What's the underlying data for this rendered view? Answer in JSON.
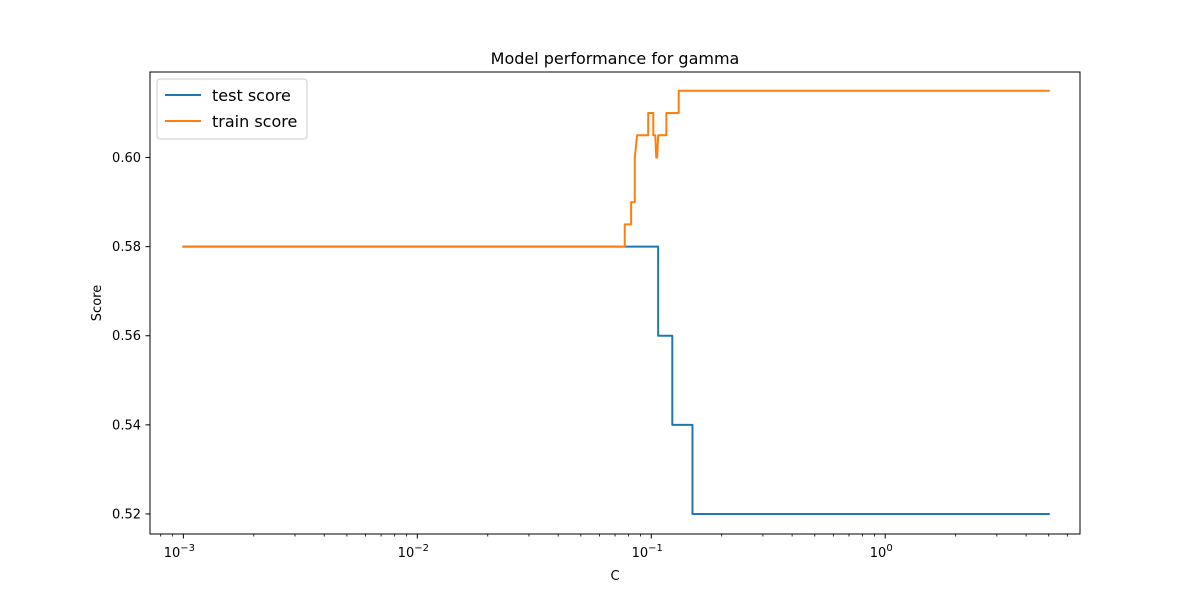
{
  "chart_data": {
    "type": "line",
    "title": "Model performance for gamma",
    "xlabel": "C",
    "ylabel": "Score",
    "xscale": "log",
    "xlim": [
      0.00072,
      6.8
    ],
    "ylim": [
      0.5155,
      0.6192
    ],
    "x_ticks": [
      {
        "value": 0.001,
        "base": "10",
        "exp": "−3"
      },
      {
        "value": 0.01,
        "base": "10",
        "exp": "−2"
      },
      {
        "value": 0.1,
        "base": "10",
        "exp": "−1"
      },
      {
        "value": 1,
        "base": "10",
        "exp": "0"
      }
    ],
    "y_ticks": [
      {
        "value": 0.52,
        "label": "0.52"
      },
      {
        "value": 0.54,
        "label": "0.54"
      },
      {
        "value": 0.56,
        "label": "0.56"
      },
      {
        "value": 0.58,
        "label": "0.58"
      },
      {
        "value": 0.6,
        "label": "0.60"
      }
    ],
    "grid": false,
    "legend_position": "top-left",
    "series": [
      {
        "name": "test score",
        "color": "#1f77b4",
        "points": [
          [
            0.001,
            0.58
          ],
          [
            0.107,
            0.58
          ],
          [
            0.107,
            0.56
          ],
          [
            0.109,
            0.56
          ],
          [
            0.109,
            0.56
          ],
          [
            0.123,
            0.56
          ],
          [
            0.123,
            0.54
          ],
          [
            0.125,
            0.54
          ],
          [
            0.125,
            0.54
          ],
          [
            0.15,
            0.54
          ],
          [
            0.15,
            0.52
          ],
          [
            0.153,
            0.52
          ],
          [
            5.0,
            0.52
          ]
        ]
      },
      {
        "name": "train score",
        "color": "#ff7f0e",
        "points": [
          [
            0.001,
            0.58
          ],
          [
            0.077,
            0.58
          ],
          [
            0.077,
            0.585
          ],
          [
            0.078,
            0.585
          ],
          [
            0.082,
            0.585
          ],
          [
            0.082,
            0.59
          ],
          [
            0.084,
            0.59
          ],
          [
            0.085,
            0.59
          ],
          [
            0.085,
            0.6
          ],
          [
            0.087,
            0.605
          ],
          [
            0.093,
            0.605
          ],
          [
            0.095,
            0.605
          ],
          [
            0.096,
            0.605
          ],
          [
            0.097,
            0.605
          ],
          [
            0.097,
            0.61
          ],
          [
            0.1,
            0.61
          ],
          [
            0.102,
            0.61
          ],
          [
            0.102,
            0.605
          ],
          [
            0.104,
            0.605
          ],
          [
            0.105,
            0.6
          ],
          [
            0.106,
            0.6
          ],
          [
            0.107,
            0.605
          ],
          [
            0.113,
            0.605
          ],
          [
            0.116,
            0.605
          ],
          [
            0.116,
            0.61
          ],
          [
            0.12,
            0.61
          ],
          [
            0.131,
            0.61
          ],
          [
            0.131,
            0.615
          ],
          [
            0.134,
            0.615
          ],
          [
            5.0,
            0.615
          ]
        ]
      }
    ]
  }
}
